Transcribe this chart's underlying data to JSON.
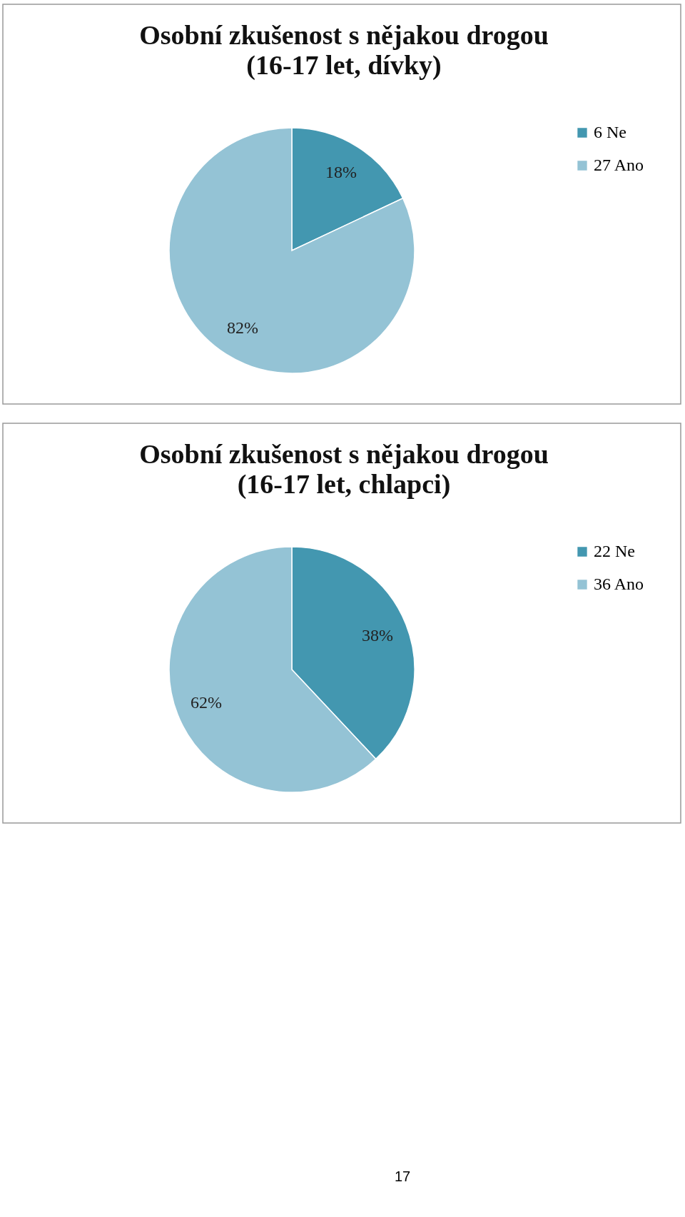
{
  "chart_data": [
    {
      "type": "pie",
      "title": [
        "Osobní zkušenost s nějakou drogou",
        "(16-17 let, dívky)"
      ],
      "categories": [
        "6 Ne",
        "27 Ano"
      ],
      "values": [
        18,
        82
      ],
      "colors": [
        "#4397b0",
        "#94c3d5"
      ],
      "value_labels": [
        "18%",
        "82%"
      ],
      "legend": "right"
    },
    {
      "type": "pie",
      "title": [
        "Osobní zkušenost s nějakou drogou",
        "(16-17 let, chlapci)"
      ],
      "categories": [
        "22 Ne",
        "36 Ano"
      ],
      "values": [
        38,
        62
      ],
      "colors": [
        "#4397b0",
        "#94c3d5"
      ],
      "value_labels": [
        "38%",
        "62%"
      ],
      "legend": "right",
      "annotations": [
        "17"
      ]
    }
  ]
}
